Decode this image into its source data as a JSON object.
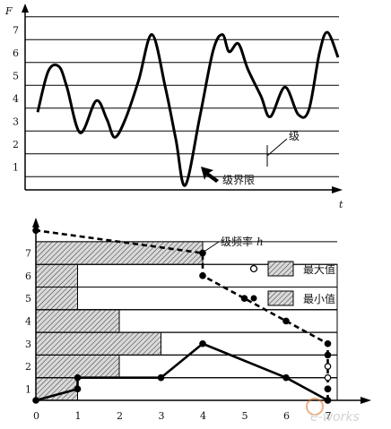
{
  "top_chart": {
    "y_axis_label": "F",
    "x_axis_label": "t",
    "y_ticks": [
      "1",
      "2",
      "3",
      "4",
      "5",
      "6",
      "7"
    ],
    "level_annotation": "级",
    "boundary_annotation": "级界限",
    "signal": [
      {
        "t": 0.0,
        "F": 3.4
      },
      {
        "t": 0.4,
        "F": 5.2
      },
      {
        "t": 0.8,
        "F": 5.4
      },
      {
        "t": 1.1,
        "F": 4.5
      },
      {
        "t": 1.6,
        "F": 2.5
      },
      {
        "t": 2.2,
        "F": 3.9
      },
      {
        "t": 2.6,
        "F": 3.1
      },
      {
        "t": 2.9,
        "F": 2.3
      },
      {
        "t": 3.3,
        "F": 3.1
      },
      {
        "t": 3.8,
        "F": 4.8
      },
      {
        "t": 4.3,
        "F": 6.8
      },
      {
        "t": 4.8,
        "F": 4.5
      },
      {
        "t": 5.2,
        "F": 2.2
      },
      {
        "t": 5.55,
        "F": 0.2
      },
      {
        "t": 6.1,
        "F": 3.2
      },
      {
        "t": 6.6,
        "F": 6.1
      },
      {
        "t": 6.95,
        "F": 6.8
      },
      {
        "t": 7.2,
        "F": 6.05
      },
      {
        "t": 7.55,
        "F": 6.4
      },
      {
        "t": 7.9,
        "F": 5.3
      },
      {
        "t": 8.4,
        "F": 4.1
      },
      {
        "t": 8.75,
        "F": 3.2
      },
      {
        "t": 9.3,
        "F": 4.5
      },
      {
        "t": 9.8,
        "F": 3.3
      },
      {
        "t": 10.2,
        "F": 3.5
      },
      {
        "t": 10.6,
        "F": 6.0
      },
      {
        "t": 10.9,
        "F": 6.9
      },
      {
        "t": 11.3,
        "F": 5.8
      }
    ]
  },
  "bottom_chart": {
    "x_ticks": [
      "0",
      "1",
      "2",
      "3",
      "4",
      "5",
      "6",
      "7"
    ],
    "y_ticks": [
      "1",
      "2",
      "3",
      "4",
      "5",
      "6",
      "7"
    ],
    "freq_label": "级频率",
    "freq_symbol": "h",
    "legend": [
      {
        "marker": "open",
        "label": "最大值"
      },
      {
        "marker": "filled",
        "label": "最小值"
      }
    ],
    "chart_data": {
      "type": "bar",
      "orientation": "horizontal",
      "categories": [
        "1",
        "2",
        "3",
        "4",
        "5",
        "6",
        "7"
      ],
      "series": [
        {
          "name": "最小值",
          "values": [
            1,
            2,
            3,
            2,
            1,
            1,
            0
          ]
        },
        {
          "name": "最大值",
          "values": [
            0,
            0,
            0,
            0,
            0,
            0,
            4
          ]
        }
      ],
      "lines": [
        {
          "name": "最小值",
          "style": "solid",
          "points": [
            [
              7,
              0
            ],
            [
              6,
              1
            ],
            [
              4,
              2.5
            ],
            [
              3,
              1
            ],
            [
              1,
              1
            ],
            [
              1,
              0.5
            ],
            [
              0,
              0
            ]
          ]
        },
        {
          "name": "最大值",
          "style": "dashed",
          "points": [
            [
              7,
              0
            ],
            [
              7,
              0.5
            ],
            [
              7,
              0.5
            ],
            [
              7,
              1
            ],
            [
              7,
              1.5
            ],
            [
              7,
              2
            ],
            [
              7,
              2.5
            ],
            [
              6,
              3.5
            ],
            [
              5,
              4.5
            ],
            [
              4,
              5.5
            ],
            [
              4,
              6.5
            ],
            [
              0,
              7.5
            ]
          ]
        }
      ],
      "xlim": [
        0,
        7
      ],
      "ylim": [
        0,
        7.5
      ]
    }
  },
  "watermark": "e-works"
}
